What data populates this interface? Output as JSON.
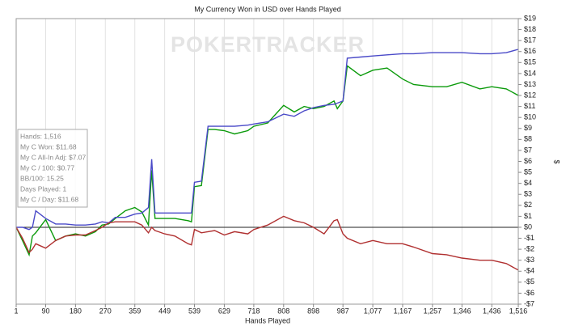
{
  "chart_data": {
    "type": "line",
    "title": "My Currency Won in USD over Hands Played",
    "watermark": "POKERTRACKER",
    "x_label": "Hands Played",
    "y_label": "$",
    "annotations": [
      "Hands: 1,516",
      "My C Won: $11.68",
      "My C All-In Adj: $7.07",
      "My C / 100: $0.77",
      "BB/100: 15.25",
      "Days Played: 1",
      "My C / Day: $11.68"
    ],
    "x": [
      1,
      20,
      40,
      50,
      60,
      90,
      120,
      150,
      180,
      210,
      240,
      260,
      280,
      300,
      330,
      359,
      380,
      400,
      410,
      420,
      430,
      449,
      480,
      520,
      530,
      539,
      560,
      580,
      600,
      629,
      660,
      700,
      718,
      760,
      808,
      840,
      870,
      898,
      930,
      960,
      970,
      987,
      1000,
      1040,
      1077,
      1120,
      1167,
      1200,
      1257,
      1300,
      1346,
      1400,
      1436,
      1480,
      1516
    ],
    "series": [
      {
        "color": "#0a9a0a",
        "values": [
          0,
          -1.2,
          -2.5,
          -0.8,
          -0.5,
          0.7,
          -1.2,
          -0.8,
          -0.6,
          -0.8,
          -0.4,
          0.2,
          0.3,
          0.8,
          1.5,
          1.8,
          1.4,
          0.2,
          5.2,
          0.8,
          0.8,
          0.8,
          0.8,
          0.6,
          0.5,
          3.7,
          3.8,
          8.9,
          8.9,
          8.8,
          8.5,
          8.8,
          9.2,
          9.5,
          11.1,
          10.5,
          11,
          10.8,
          11,
          11.5,
          10.8,
          11.5,
          14.7,
          13.8,
          14.3,
          14.5,
          13.5,
          13,
          12.8,
          12.8,
          13.2,
          12.6,
          12.8,
          12.6,
          12
        ]
      },
      {
        "color": "#4a4ac8",
        "values": [
          0,
          0,
          -0.2,
          0,
          1.5,
          0.8,
          0.3,
          0.3,
          0.2,
          0.2,
          0.3,
          0.5,
          0.4,
          0.9,
          0.9,
          1.2,
          1.3,
          1.8,
          6.2,
          1.3,
          1.3,
          1.3,
          1.3,
          1.3,
          1.3,
          4.1,
          4.2,
          9.2,
          9.2,
          9.2,
          9.2,
          9.3,
          9.4,
          9.6,
          10.3,
          10.1,
          10.6,
          10.9,
          11.1,
          11.2,
          11.3,
          11.5,
          15.4,
          15.5,
          15.6,
          15.7,
          15.8,
          15.8,
          15.9,
          15.9,
          15.9,
          15.8,
          15.8,
          15.9,
          16.2
        ]
      },
      {
        "color": "#b03030",
        "values": [
          0,
          -1,
          -2.3,
          -2,
          -1.5,
          -1.9,
          -1.2,
          -0.8,
          -0.7,
          -0.7,
          -0.3,
          0,
          0.4,
          0.5,
          0.5,
          0.5,
          0.2,
          -0.5,
          0,
          -0.3,
          -0.4,
          -0.6,
          -0.8,
          -1.5,
          -1.6,
          -0.2,
          -0.5,
          -0.4,
          -0.3,
          -0.7,
          -0.4,
          -0.6,
          -0.2,
          0.2,
          1,
          0.6,
          0.4,
          0,
          -0.6,
          0.6,
          0.7,
          -0.6,
          -1,
          -1.5,
          -1.2,
          -1.5,
          -1.5,
          -1.8,
          -2.4,
          -2.5,
          -2.8,
          -3,
          -3,
          -3.3,
          -3.9
        ]
      }
    ],
    "xlim": [
      1,
      1516
    ],
    "xticks": [
      1,
      90,
      180,
      270,
      359,
      449,
      539,
      629,
      718,
      808,
      898,
      987,
      {
        "value": 1077,
        "label": "1,077"
      },
      {
        "value": 1167,
        "label": "1,167"
      },
      {
        "value": 1257,
        "label": "1,257"
      },
      {
        "value": 1346,
        "label": "1,346"
      },
      {
        "value": 1436,
        "label": "1,436"
      },
      {
        "value": 1516,
        "label": "1,516"
      }
    ],
    "ylim": [
      -7,
      19
    ],
    "yticks": [
      {
        "value": 19,
        "label": "$19"
      },
      {
        "value": 18,
        "label": "$18"
      },
      {
        "value": 17,
        "label": "$17"
      },
      {
        "value": 16,
        "label": "$16"
      },
      {
        "value": 15,
        "label": "$15"
      },
      {
        "value": 14,
        "label": "$14"
      },
      {
        "value": 13,
        "label": "$13"
      },
      {
        "value": 12,
        "label": "$12"
      },
      {
        "value": 11,
        "label": "$11"
      },
      {
        "value": 10,
        "label": "$10"
      },
      {
        "value": 9,
        "label": "$9"
      },
      {
        "value": 8,
        "label": "$8"
      },
      {
        "value": 7,
        "label": "$7"
      },
      {
        "value": 6,
        "label": "$6"
      },
      {
        "value": 5,
        "label": "$5"
      },
      {
        "value": 4,
        "label": "$4"
      },
      {
        "value": 3,
        "label": "$3"
      },
      {
        "value": 2,
        "label": "$2"
      },
      {
        "value": 1,
        "label": "$1"
      },
      {
        "value": 0,
        "label": "$0"
      },
      {
        "value": -1,
        "label": "-$1"
      },
      {
        "value": -2,
        "label": "-$2"
      },
      {
        "value": -3,
        "label": "-$3"
      },
      {
        "value": -4,
        "label": "-$4"
      },
      {
        "value": -5,
        "label": "-$5"
      },
      {
        "value": -6,
        "label": "-$6"
      },
      {
        "value": -7,
        "label": "-$7"
      }
    ],
    "xgrid": true
  }
}
